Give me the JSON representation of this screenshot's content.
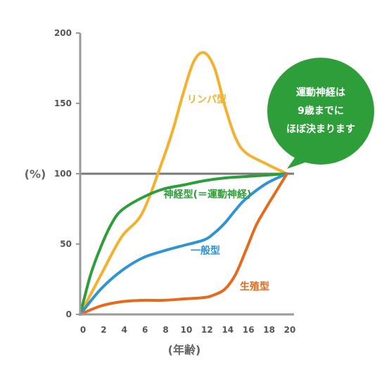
{
  "chart_data": {
    "type": "line",
    "xlabel": "(年齢)",
    "ylabel": "(%)",
    "xlim": [
      0,
      20
    ],
    "ylim": [
      0,
      200
    ],
    "x_ticks": [
      0,
      2,
      4,
      6,
      8,
      10,
      12,
      14,
      16,
      18,
      20
    ],
    "y_ticks": [
      0,
      50,
      100,
      150,
      200
    ],
    "reference_line": {
      "y": 100,
      "color": "#7a7a7a"
    },
    "series": [
      {
        "name": "リンパ型",
        "color": "#f5b12e",
        "points": [
          [
            0,
            0
          ],
          [
            2,
            28
          ],
          [
            4,
            55
          ],
          [
            6,
            72
          ],
          [
            8,
            110
          ],
          [
            9,
            132
          ],
          [
            10,
            158
          ],
          [
            11,
            180
          ],
          [
            12,
            186
          ],
          [
            13,
            175
          ],
          [
            14,
            148
          ],
          [
            15,
            126
          ],
          [
            16,
            115
          ],
          [
            18,
            107
          ],
          [
            20,
            100
          ]
        ]
      },
      {
        "name": "神経型(＝運動神経)",
        "color": "#2e9e3a",
        "points": [
          [
            0,
            0
          ],
          [
            1,
            28
          ],
          [
            2,
            48
          ],
          [
            3,
            64
          ],
          [
            4,
            74
          ],
          [
            6,
            83
          ],
          [
            8,
            89
          ],
          [
            10,
            92
          ],
          [
            12,
            95
          ],
          [
            14,
            97
          ],
          [
            16,
            98
          ],
          [
            18,
            99
          ],
          [
            20,
            100
          ]
        ]
      },
      {
        "name": "一般型",
        "color": "#2e94d4",
        "points": [
          [
            0,
            0
          ],
          [
            2,
            18
          ],
          [
            4,
            31
          ],
          [
            6,
            40
          ],
          [
            8,
            45
          ],
          [
            10,
            49
          ],
          [
            12,
            53
          ],
          [
            13,
            58
          ],
          [
            14,
            65
          ],
          [
            15,
            74
          ],
          [
            16,
            82
          ],
          [
            18,
            93
          ],
          [
            20,
            100
          ]
        ]
      },
      {
        "name": "生殖型",
        "color": "#e56a1c",
        "points": [
          [
            0,
            0
          ],
          [
            2,
            6
          ],
          [
            4,
            9
          ],
          [
            6,
            10
          ],
          [
            8,
            10
          ],
          [
            10,
            11
          ],
          [
            12,
            12
          ],
          [
            13,
            14
          ],
          [
            14,
            18
          ],
          [
            15,
            28
          ],
          [
            16,
            45
          ],
          [
            17,
            63
          ],
          [
            18,
            76
          ],
          [
            19,
            88
          ],
          [
            20,
            100
          ]
        ]
      }
    ],
    "annotation": {
      "lines": [
        "運動神経は",
        "9歳までに",
        "ほぼ決まります"
      ],
      "color": "#2e9e3a"
    }
  }
}
